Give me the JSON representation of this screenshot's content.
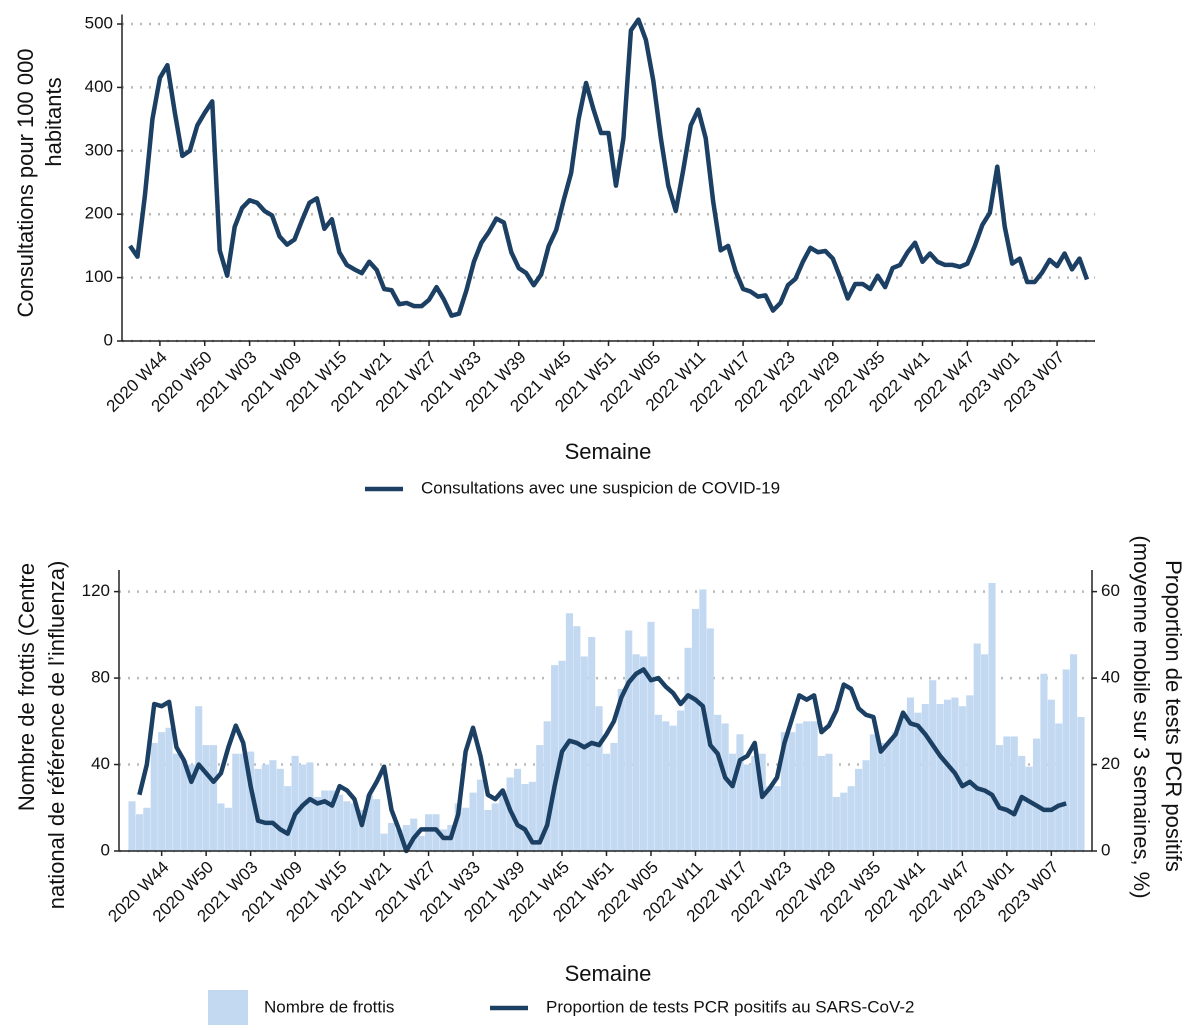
{
  "chart_data": [
    {
      "type": "line",
      "xlabel": "Semaine",
      "ylabel": [
        "Consultations pour 100 000",
        "habitants"
      ],
      "categories": [
        null,
        null,
        null,
        null,
        "2020 W44",
        null,
        null,
        null,
        null,
        null,
        "2020 W50",
        null,
        null,
        null,
        null,
        null,
        "2021 W03",
        null,
        null,
        null,
        null,
        null,
        "2021 W09",
        null,
        null,
        null,
        null,
        null,
        "2021 W15",
        null,
        null,
        null,
        null,
        null,
        "2021 W21",
        null,
        null,
        null,
        null,
        null,
        "2021 W27",
        null,
        null,
        null,
        null,
        null,
        "2021 W33",
        null,
        null,
        null,
        null,
        null,
        "2021 W39",
        null,
        null,
        null,
        null,
        null,
        "2021 W45",
        null,
        null,
        null,
        null,
        null,
        "2021 W51",
        null,
        null,
        null,
        null,
        null,
        "2022 W05",
        null,
        null,
        null,
        null,
        null,
        "2022 W11",
        null,
        null,
        null,
        null,
        null,
        "2022 W17",
        null,
        null,
        null,
        null,
        null,
        "2022 W23",
        null,
        null,
        null,
        null,
        null,
        "2022 W29",
        null,
        null,
        null,
        null,
        null,
        "2022 W35",
        null,
        null,
        null,
        null,
        null,
        "2022 W41",
        null,
        null,
        null,
        null,
        null,
        "2022 W47",
        null,
        null,
        null,
        null,
        null,
        "2023 W01",
        null,
        null,
        null,
        null,
        null,
        "2023 W07",
        null,
        null,
        null,
        null
      ],
      "series": [
        {
          "name": "Consultations avec une suspicion de COVID-19",
          "color": "#1c3f64",
          "values": [
            150,
            133,
            230,
            350,
            415,
            435,
            360,
            292,
            300,
            340,
            360,
            378,
            143,
            103,
            180,
            210,
            222,
            218,
            205,
            198,
            165,
            152,
            160,
            190,
            218,
            225,
            177,
            192,
            140,
            120,
            113,
            107,
            125,
            112,
            82,
            80,
            58,
            60,
            55,
            55,
            65,
            85,
            65,
            40,
            43,
            80,
            125,
            155,
            172,
            193,
            187,
            140,
            115,
            107,
            88,
            105,
            150,
            175,
            222,
            265,
            350,
            407,
            365,
            328,
            328,
            245,
            320,
            490,
            507,
            475,
            410,
            320,
            245,
            205,
            270,
            340,
            365,
            320,
            220,
            143,
            150,
            110,
            82,
            78,
            70,
            72,
            48,
            60,
            88,
            98,
            125,
            147,
            140,
            142,
            130,
            100,
            67,
            90,
            90,
            82,
            103,
            85,
            115,
            120,
            140,
            155,
            125,
            138,
            125,
            120,
            120,
            117,
            122,
            150,
            183,
            202,
            275,
            180,
            122,
            130,
            93,
            93,
            108,
            128,
            118,
            138,
            113,
            130,
            97
          ]
        }
      ],
      "ylim": [
        0,
        515
      ],
      "yticks": [
        0,
        100,
        200,
        300,
        400,
        500
      ],
      "grid": true
    },
    {
      "type": "combo",
      "xlabel": "Semaine",
      "ylabel": [
        "Nombre de frottis (Centre",
        "national de référence de l’influenza)"
      ],
      "y2label": [
        "Proportion de tests PCR positifs",
        "(moyenne mobile sur 3 semaines, %)"
      ],
      "categories": [
        null,
        null,
        null,
        null,
        "2020 W44",
        null,
        null,
        null,
        null,
        null,
        "2020 W50",
        null,
        null,
        null,
        null,
        null,
        "2021 W03",
        null,
        null,
        null,
        null,
        null,
        "2021 W09",
        null,
        null,
        null,
        null,
        null,
        "2021 W15",
        null,
        null,
        null,
        null,
        null,
        "2021 W21",
        null,
        null,
        null,
        null,
        null,
        "2021 W27",
        null,
        null,
        null,
        null,
        null,
        "2021 W33",
        null,
        null,
        null,
        null,
        null,
        "2021 W39",
        null,
        null,
        null,
        null,
        null,
        "2021 W45",
        null,
        null,
        null,
        null,
        null,
        "2021 W51",
        null,
        null,
        null,
        null,
        null,
        "2022 W05",
        null,
        null,
        null,
        null,
        null,
        "2022 W11",
        null,
        null,
        null,
        null,
        null,
        "2022 W17",
        null,
        null,
        null,
        null,
        null,
        "2022 W23",
        null,
        null,
        null,
        null,
        null,
        "2022 W29",
        null,
        null,
        null,
        null,
        null,
        "2022 W35",
        null,
        null,
        null,
        null,
        null,
        "2022 W41",
        null,
        null,
        null,
        null,
        null,
        "2022 W47",
        null,
        null,
        null,
        null,
        null,
        "2023 W01",
        null,
        null,
        null,
        null,
        null,
        "2023 W07",
        null,
        null,
        null,
        null
      ],
      "series": [
        {
          "name": "Nombre de frottis",
          "type": "bar",
          "color": "#c3d9f1",
          "values": [
            23,
            17,
            20,
            50,
            55,
            57,
            45,
            42,
            40,
            67,
            49,
            49,
            22,
            20,
            45,
            45,
            46,
            38,
            40,
            42,
            38,
            30,
            44,
            40,
            41,
            25,
            28,
            28,
            26,
            23,
            22,
            19,
            26,
            24,
            8,
            13,
            10,
            12,
            15,
            7,
            17,
            17,
            10,
            12,
            22,
            20,
            27,
            33,
            19,
            22,
            28,
            34,
            38,
            31,
            32,
            49,
            60,
            86,
            88,
            110,
            104,
            90,
            99,
            67,
            45,
            50,
            75,
            102,
            91,
            90,
            106,
            63,
            60,
            58,
            65,
            94,
            112,
            121,
            103,
            63,
            59,
            45,
            54,
            40,
            44,
            45,
            30,
            30,
            55,
            55,
            59,
            60,
            60,
            44,
            45,
            25,
            27,
            30,
            38,
            42,
            54,
            50,
            50,
            55,
            62,
            71,
            64,
            68,
            79,
            68,
            70,
            71,
            67,
            72,
            96,
            91,
            124,
            49,
            53,
            53,
            44,
            39,
            52,
            82,
            70,
            59,
            84,
            91,
            62
          ]
        },
        {
          "name": "Proportion de tests PCR positifs au SARS-CoV-2",
          "type": "line",
          "axis": "y2",
          "color": "#1c3f64",
          "values": [
            null,
            13,
            20,
            34,
            33.5,
            34.5,
            24,
            21,
            16,
            20,
            18,
            16,
            18,
            24,
            29,
            25,
            15,
            7,
            6.5,
            6.5,
            5,
            4,
            8.5,
            10.5,
            12,
            11,
            11.5,
            10.5,
            15,
            14,
            12,
            6,
            13,
            16,
            19.5,
            9.5,
            5,
            0,
            3,
            5,
            5,
            5,
            3,
            3,
            8.5,
            23,
            28.5,
            22,
            13,
            12,
            14,
            9.5,
            6,
            5,
            2,
            2,
            6,
            15,
            23,
            25.5,
            25,
            24,
            25,
            24.5,
            27,
            30,
            35.5,
            39,
            41,
            42,
            39.5,
            40,
            38,
            36.5,
            34,
            36,
            35,
            33.5,
            24.5,
            22.5,
            17,
            15,
            21,
            22,
            25,
            12.5,
            14.5,
            17,
            25,
            30.5,
            36,
            35,
            36,
            27.5,
            29,
            32.5,
            38.5,
            37.5,
            33,
            31.5,
            31,
            23,
            25,
            27,
            32,
            29.5,
            29,
            27,
            24.5,
            22,
            20,
            18,
            15,
            16,
            14.5,
            14,
            13,
            10,
            9.5,
            8.5,
            12.5,
            11.5,
            10.5,
            9.5,
            9.5,
            10.5,
            11,
            null,
            null
          ]
        }
      ],
      "ylim": [
        0,
        130
      ],
      "yticks": [
        0,
        40,
        80,
        120
      ],
      "y2lim": [
        0,
        65
      ],
      "y2ticks": [
        0,
        20,
        40,
        60
      ],
      "grid": true
    }
  ]
}
